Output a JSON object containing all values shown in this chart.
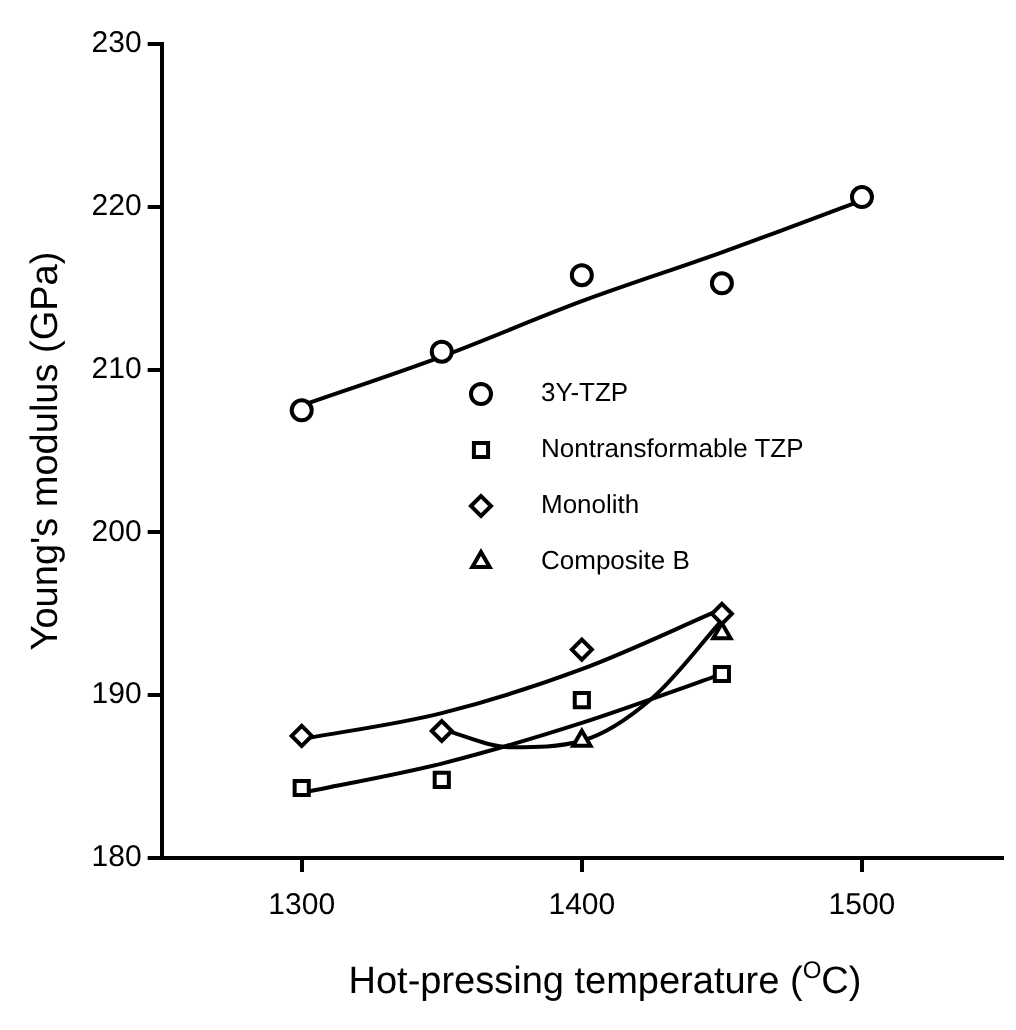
{
  "chart_data": {
    "type": "scatter",
    "xlabel": "Hot-pressing temperature ($^{O}$C)",
    "ylabel": "Young's modulus (GPa)",
    "xlim": [
      1250,
      1550
    ],
    "xticks": [
      1300,
      1400,
      1500
    ],
    "ylim": [
      180,
      230
    ],
    "yticks": [
      180,
      190,
      200,
      210,
      220,
      230
    ],
    "grid": false,
    "legend": "right",
    "series": [
      {
        "name": "3Y-TZP",
        "type": "scatter",
        "marker": "circle",
        "color": "#000000",
        "x": [
          1300,
          1350,
          1400,
          1450,
          1500
        ],
        "values": [
          207.5,
          211.1,
          215.8,
          215.3,
          220.6
        ]
      },
      {
        "name": "Nontransformable TZP",
        "type": "scatter",
        "marker": "square",
        "color": "#000000",
        "x": [
          1300,
          1350,
          1400,
          1450
        ],
        "values": [
          184.3,
          184.8,
          189.7,
          191.3
        ]
      },
      {
        "name": "Monolith",
        "type": "scatter",
        "marker": "diamond",
        "color": "#000000",
        "x": [
          1300,
          1350,
          1400,
          1450
        ],
        "values": [
          187.5,
          187.8,
          192.8,
          195.0
        ]
      },
      {
        "name": "Composite B",
        "type": "scatter",
        "marker": "triangle",
        "color": "#000000",
        "x": [
          1400,
          1450
        ],
        "values": [
          187.2,
          193.8
        ]
      },
      {
        "type": "line",
        "marker": "none",
        "color": "#000000",
        "x": [
          1300,
          1350,
          1400,
          1450,
          1500
        ],
        "values": [
          207.8,
          210.8,
          214.2,
          217.2,
          220.4
        ]
      },
      {
        "type": "line",
        "marker": "none",
        "color": "#000000",
        "x": [
          1300,
          1350,
          1400,
          1450
        ],
        "values": [
          184.0,
          185.8,
          188.3,
          191.3
        ]
      },
      {
        "type": "line",
        "marker": "none",
        "color": "#000000",
        "x": [
          1300,
          1350,
          1400,
          1450
        ],
        "values": [
          187.3,
          188.9,
          191.6,
          195.3
        ]
      },
      {
        "type": "line",
        "marker": "none",
        "color": "#000000",
        "x": [
          1350,
          1375,
          1400,
          1425,
          1450
        ],
        "values": [
          187.9,
          186.8,
          187.2,
          189.8,
          194.6
        ]
      }
    ]
  }
}
